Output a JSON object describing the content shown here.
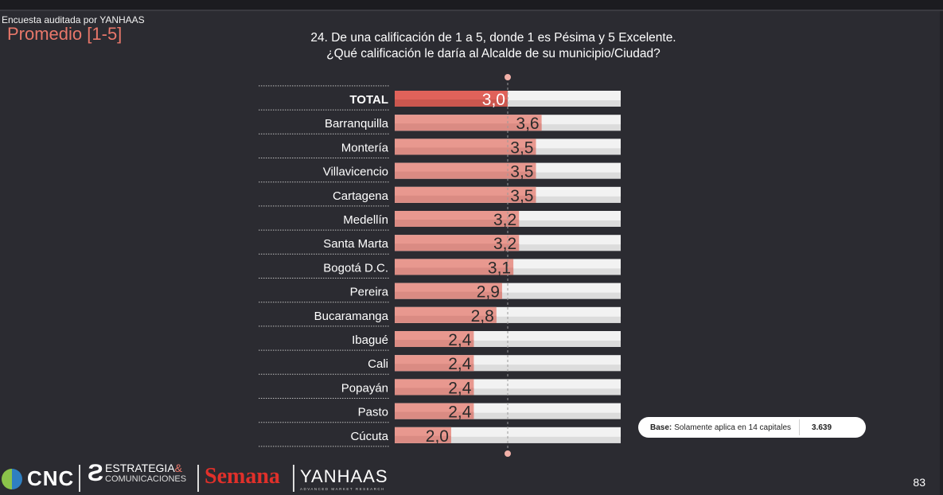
{
  "header": {
    "audit_note": "Encuesta auditada por YANHAAS",
    "metric_label": "Promedio [1-5]",
    "question_line1": "24. De una calificación de 1 a 5, donde 1 es Pésima y 5 Excelente.",
    "question_line2": "¿Qué calificación le daría al Alcalde de su municipio/Ciudad?"
  },
  "chart_data": {
    "type": "bar",
    "orientation": "horizontal",
    "categories": [
      "TOTAL",
      "Barranquilla",
      "Montería",
      "Villavicencio",
      "Cartagena",
      "Medellín",
      "Santa Marta",
      "Bogotá D.C.",
      "Pereira",
      "Bucaramanga",
      "Ibagué",
      "Cali",
      "Popayán",
      "Pasto",
      "Cúcuta"
    ],
    "values": [
      3.0,
      3.6,
      3.5,
      3.5,
      3.5,
      3.2,
      3.2,
      3.1,
      2.9,
      2.8,
      2.4,
      2.4,
      2.4,
      2.4,
      2.0
    ],
    "value_labels": [
      "3,0",
      "3,6",
      "3,5",
      "3,5",
      "3,5",
      "3,2",
      "3,2",
      "3,1",
      "2,9",
      "2,8",
      "2,4",
      "2,4",
      "2,4",
      "2,4",
      "2,0"
    ],
    "xlim": [
      1,
      5
    ],
    "reference_line": 3.0,
    "highlight_category": "TOTAL",
    "colors": {
      "highlight": "#e0625a",
      "bar": "#e8988f",
      "track": "#f2f2f2"
    }
  },
  "base_note": {
    "label": "Base:",
    "text": "Solamente aplica en 14 capitales",
    "number": "3.639"
  },
  "footer": {
    "cnc": "CNC",
    "estrategia": "ESTRATEGIA",
    "estrategia_amp": "&",
    "comunicaciones": "COMUNICACIONES",
    "semana": "Semana",
    "yanhaas": "YANHAAS",
    "yanhaas_sub": "ADVANCED MARKET RESEARCH",
    "page_number": "83"
  }
}
